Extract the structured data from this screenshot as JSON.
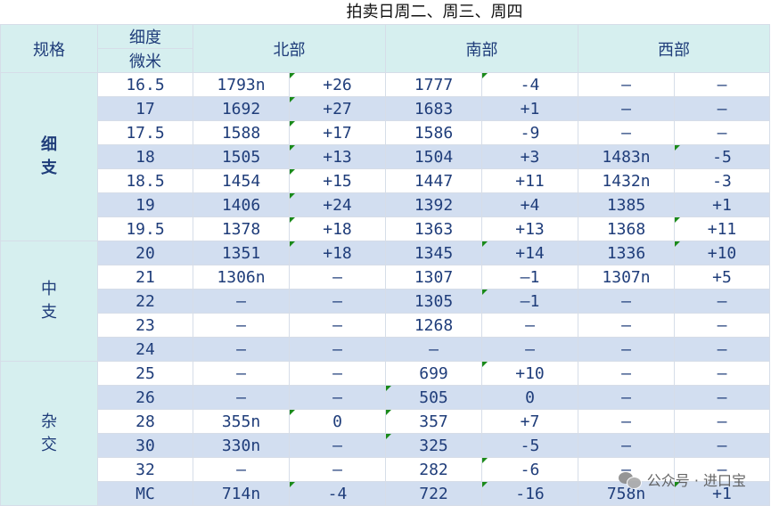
{
  "title": "拍卖日周二、周三、周四",
  "header": {
    "spec": "规格",
    "fineness_top": "细度",
    "fineness_bottom": "微米",
    "regions": [
      "北部",
      "南部",
      "西部"
    ]
  },
  "groups": [
    {
      "name": "细\n支",
      "rows": [
        {
          "micron": "16.5",
          "north": "1793n",
          "north_chg": "+26",
          "south": "1777",
          "south_chg": "-4",
          "west": "–",
          "west_chg": "–"
        },
        {
          "micron": "17",
          "north": "1692",
          "north_chg": "+27",
          "south": "1683",
          "south_chg": "+1",
          "west": "–",
          "west_chg": "–"
        },
        {
          "micron": "17.5",
          "north": "1588",
          "north_chg": "+17",
          "south": "1586",
          "south_chg": "-9",
          "west": "–",
          "west_chg": "–"
        },
        {
          "micron": "18",
          "north": "1505",
          "north_chg": "+13",
          "south": "1504",
          "south_chg": "+3",
          "west": "1483n",
          "west_chg": "-5"
        },
        {
          "micron": "18.5",
          "north": "1454",
          "north_chg": "+15",
          "south": "1447",
          "south_chg": "+11",
          "west": "1432n",
          "west_chg": "-3"
        },
        {
          "micron": "19",
          "north": "1406",
          "north_chg": "+24",
          "south": "1392",
          "south_chg": "+4",
          "west": "1385",
          "west_chg": "+1"
        },
        {
          "micron": "19.5",
          "north": "1378",
          "north_chg": "+18",
          "south": "1363",
          "south_chg": "+13",
          "west": "1368",
          "west_chg": "+11"
        }
      ]
    },
    {
      "name": "中\n支",
      "rows": [
        {
          "micron": "20",
          "north": "1351",
          "north_chg": "+18",
          "south": "1345",
          "south_chg": "+14",
          "west": "1336",
          "west_chg": "+10"
        },
        {
          "micron": "21",
          "north": "1306n",
          "north_chg": "–",
          "south": "1307",
          "south_chg": "–1",
          "west": "1307n",
          "west_chg": "+5"
        },
        {
          "micron": "22",
          "north": "–",
          "north_chg": "–",
          "south": "1305",
          "south_chg": "–1",
          "west": "–",
          "west_chg": "–"
        },
        {
          "micron": "23",
          "north": "–",
          "north_chg": "–",
          "south": "1268",
          "south_chg": "–",
          "west": "–",
          "west_chg": "–"
        },
        {
          "micron": "24",
          "north": "–",
          "north_chg": "–",
          "south": "–",
          "south_chg": "–",
          "west": "–",
          "west_chg": "–"
        }
      ]
    },
    {
      "name": "杂\n交",
      "rows": [
        {
          "micron": "25",
          "north": "–",
          "north_chg": "–",
          "south": "699",
          "south_chg": "+10",
          "west": "–",
          "west_chg": "–"
        },
        {
          "micron": "26",
          "north": "–",
          "north_chg": "–",
          "south": "505",
          "south_chg": "0",
          "west": "–",
          "west_chg": "–"
        },
        {
          "micron": "28",
          "north": "355n",
          "north_chg": "0",
          "south": "357",
          "south_chg": "+7",
          "west": "–",
          "west_chg": "–"
        },
        {
          "micron": "30",
          "north": "330n",
          "north_chg": "–",
          "south": "325",
          "south_chg": "-5",
          "west": "–",
          "west_chg": "–"
        },
        {
          "micron": "32",
          "north": "–",
          "north_chg": "–",
          "south": "282",
          "south_chg": "-6",
          "west": "–",
          "west_chg": "–"
        },
        {
          "micron": "MC",
          "north": "714n",
          "north_chg": "-4",
          "south": "722",
          "south_chg": "-16",
          "west": "758n",
          "west_chg": "+1"
        }
      ]
    }
  ],
  "watermark": "公众号 · 进口宝",
  "icons": {
    "watermark": "wechat-icon"
  },
  "colors": {
    "header_bg": "#d6efef",
    "alt_row": "#d2def0",
    "text": "#1f3d7a",
    "flag": "#1a8a1a"
  }
}
